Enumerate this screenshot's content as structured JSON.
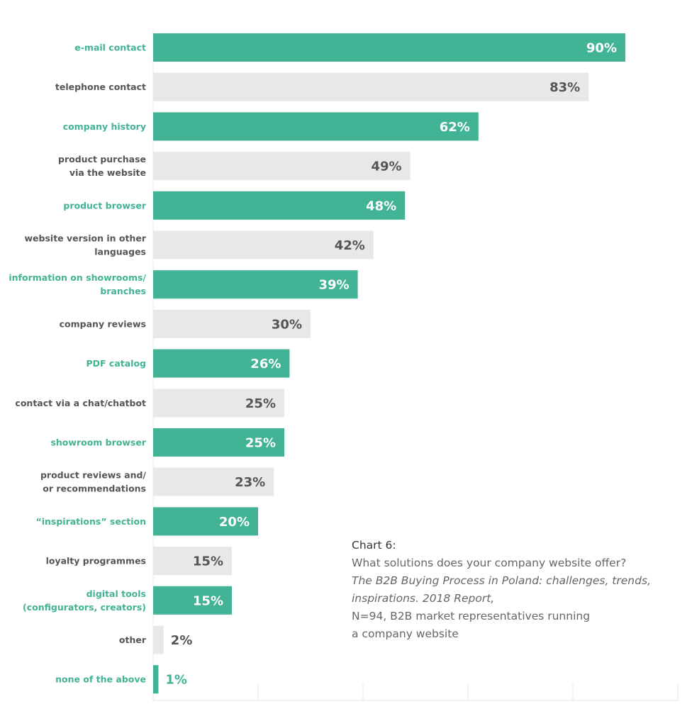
{
  "colors": {
    "accent": "#42b394",
    "neutral": "#e8e8e8",
    "accent_label": "#42b394",
    "neutral_label": "#555555",
    "value_on_accent": "#ffffff",
    "value_on_neutral": "#555555",
    "grid": "#e6e6e6"
  },
  "chart_data": {
    "type": "bar",
    "orientation": "horizontal",
    "xlim": [
      0,
      100
    ],
    "grid": true,
    "categories": [
      "e-mail contact",
      "telephone contact",
      "company history",
      "product purchase\nvia the website",
      "product browser",
      "website version in other\nlanguages",
      "information on showrooms/\nbranches",
      "company reviews",
      "PDF catalog",
      "contact via a chat/chatbot",
      "showroom browser",
      "product reviews and/\nor recommendations",
      "“inspirations” section",
      "loyalty programmes",
      "digital tools\n(configurators, creators)",
      "other",
      "none of the above"
    ],
    "values": [
      90,
      83,
      62,
      49,
      48,
      42,
      39,
      30,
      26,
      25,
      25,
      23,
      20,
      15,
      15,
      2,
      1
    ],
    "value_labels": [
      "90%",
      "83%",
      "62%",
      "49%",
      "48%",
      "42%",
      "39%",
      "30%",
      "26%",
      "25%",
      "25%",
      "23%",
      "20%",
      "15%",
      "15%",
      "2%",
      "1%"
    ],
    "highlight": [
      true,
      false,
      true,
      false,
      true,
      false,
      true,
      false,
      true,
      false,
      true,
      false,
      true,
      false,
      true,
      false,
      true
    ]
  },
  "caption": {
    "title": "Chart 6:",
    "question": "What solutions does your company website offer?",
    "source": "The B2B Buying Process in Poland: challenges, trends,\ninspirations. 2018 Report,",
    "sample": "N=94, B2B market representatives running\na company website"
  }
}
